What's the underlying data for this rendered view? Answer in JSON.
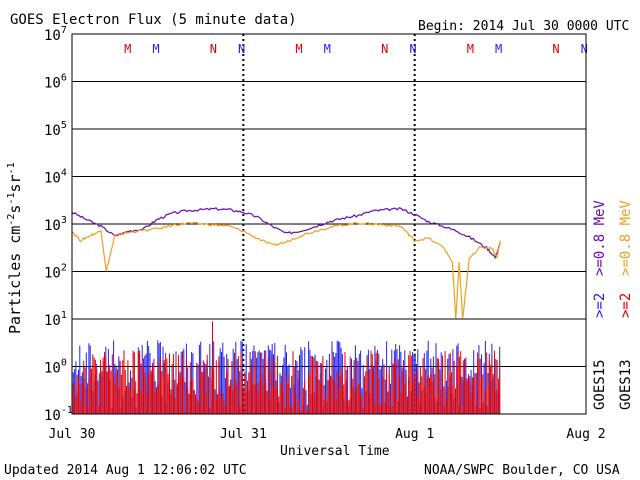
{
  "chart_data": {
    "type": "line",
    "title": "GOES Electron Flux (5 minute data)",
    "begin_label": "Begin: 2014 Jul 30 0000 UTC",
    "xlabel": "Universal Time",
    "ylabel": "Particles cm⁻²s⁻¹sr⁻¹",
    "ylabel_parts": {
      "base": "Particles cm",
      "exp1": "-2",
      "mid1": "s",
      "exp2": "-1",
      "mid2": "sr",
      "exp3": "-1"
    },
    "updated": "Updated 2014 Aug  1 12:06:02 UTC",
    "credit": "NOAA/SWPC Boulder, CO USA",
    "x_ticks": [
      {
        "label": "Jul 30",
        "day": 0
      },
      {
        "label": "Jul 31",
        "day": 1
      },
      {
        "label": "Aug 1",
        "day": 2
      },
      {
        "label": "Aug 2",
        "day": 3
      }
    ],
    "xlim_days": [
      0,
      3
    ],
    "y_log_range": [
      -1,
      7
    ],
    "y_ticks": [
      {
        "base": "10",
        "exp": "-1",
        "value": -1
      },
      {
        "base": "10",
        "exp": "0",
        "value": 0
      },
      {
        "base": "10",
        "exp": "1",
        "value": 1
      },
      {
        "base": "10",
        "exp": "2",
        "value": 2
      },
      {
        "base": "10",
        "exp": "3",
        "value": 3
      },
      {
        "base": "10",
        "exp": "4",
        "value": 4
      },
      {
        "base": "10",
        "exp": "5",
        "value": 5
      },
      {
        "base": "10",
        "exp": "6",
        "value": 6
      },
      {
        "base": "10",
        "exp": "7",
        "value": 7
      }
    ],
    "threshold_log": 3,
    "midnight_markers": [
      {
        "label": "M",
        "day": 0.325,
        "color": "#e00000"
      },
      {
        "label": "M",
        "day": 0.49,
        "color": "#2222ee"
      },
      {
        "label": "N",
        "day": 0.825,
        "color": "#e00000"
      },
      {
        "label": "N",
        "day": 0.99,
        "color": "#2222ee"
      },
      {
        "label": "M",
        "day": 1.325,
        "color": "#e00000"
      },
      {
        "label": "M",
        "day": 1.49,
        "color": "#2222ee"
      },
      {
        "label": "N",
        "day": 1.825,
        "color": "#e00000"
      },
      {
        "label": "N",
        "day": 1.99,
        "color": "#2222ee"
      },
      {
        "label": "M",
        "day": 2.325,
        "color": "#e00000"
      },
      {
        "label": "M",
        "day": 2.49,
        "color": "#2222ee"
      },
      {
        "label": "N",
        "day": 2.825,
        "color": "#e00000"
      },
      {
        "label": "N",
        "day": 2.99,
        "color": "#2222ee"
      }
    ],
    "series": [
      {
        "name": ">=0.8 MeV",
        "satellite": "GOES15",
        "color": "#6a0dad",
        "x": [
          0,
          0.08,
          0.17,
          0.25,
          0.33,
          0.42,
          0.5,
          0.58,
          0.67,
          0.75,
          0.83,
          0.92,
          1.0,
          1.08,
          1.17,
          1.25,
          1.33,
          1.42,
          1.5,
          1.58,
          1.67,
          1.75,
          1.83,
          1.92,
          2.0,
          2.08,
          2.17,
          2.25,
          2.33,
          2.42,
          2.47,
          2.5
        ],
        "log_y": [
          3.25,
          3.1,
          2.95,
          2.75,
          2.85,
          2.9,
          3.1,
          3.22,
          3.28,
          3.3,
          3.32,
          3.3,
          3.25,
          3.15,
          2.95,
          2.8,
          2.85,
          2.95,
          3.05,
          3.12,
          3.18,
          3.27,
          3.3,
          3.32,
          3.2,
          3.05,
          2.95,
          2.85,
          2.7,
          2.5,
          2.3,
          2.6
        ]
      },
      {
        "name": ">=0.8 MeV",
        "satellite": "GOES13",
        "color": "#f0a020",
        "x": [
          0,
          0.05,
          0.1,
          0.17,
          0.2,
          0.25,
          0.3,
          0.38,
          0.5,
          0.6,
          0.67,
          0.75,
          0.83,
          0.92,
          1.0,
          1.08,
          1.17,
          1.25,
          1.33,
          1.42,
          1.5,
          1.58,
          1.67,
          1.75,
          1.83,
          1.92,
          1.96,
          2.0,
          2.08,
          2.17,
          2.22,
          2.24,
          2.26,
          2.28,
          2.32,
          2.38,
          2.45,
          2.48,
          2.5
        ],
        "log_y": [
          2.85,
          2.65,
          2.75,
          2.85,
          2.0,
          2.75,
          2.8,
          2.85,
          2.9,
          2.98,
          3.02,
          3.0,
          2.98,
          2.95,
          2.85,
          2.7,
          2.55,
          2.62,
          2.75,
          2.85,
          2.93,
          2.98,
          3.02,
          3.0,
          2.98,
          2.95,
          2.8,
          2.65,
          2.7,
          2.5,
          2.2,
          1.0,
          2.2,
          1.0,
          2.3,
          2.5,
          2.5,
          2.3,
          2.65
        ]
      },
      {
        "name": ">=2 MeV",
        "satellite": "GOES15",
        "color": "#2222ee",
        "day_range": [
          0,
          2.5
        ],
        "log_range": [
          -1,
          0.55
        ]
      },
      {
        "name": ">=2 MeV",
        "satellite": "GOES13",
        "color": "#e00000",
        "day_range": [
          0,
          2.5
        ],
        "log_range": [
          -1,
          0.35
        ],
        "peak": {
          "day": 0.82,
          "log_y": 0.95
        }
      }
    ],
    "legend_right": [
      {
        "text": ">=2",
        "color": "#2222ee"
      },
      {
        "text": ">=2",
        "color": "#e00000"
      },
      {
        "text": ">=0.8 MeV",
        "color": "#6a0dad"
      },
      {
        "text": ">=0.8 MeV",
        "color": "#f0a020"
      },
      {
        "text": "GOES15",
        "color": "#000000"
      },
      {
        "text": "GOES13",
        "color": "#000000"
      }
    ],
    "grid": true
  }
}
